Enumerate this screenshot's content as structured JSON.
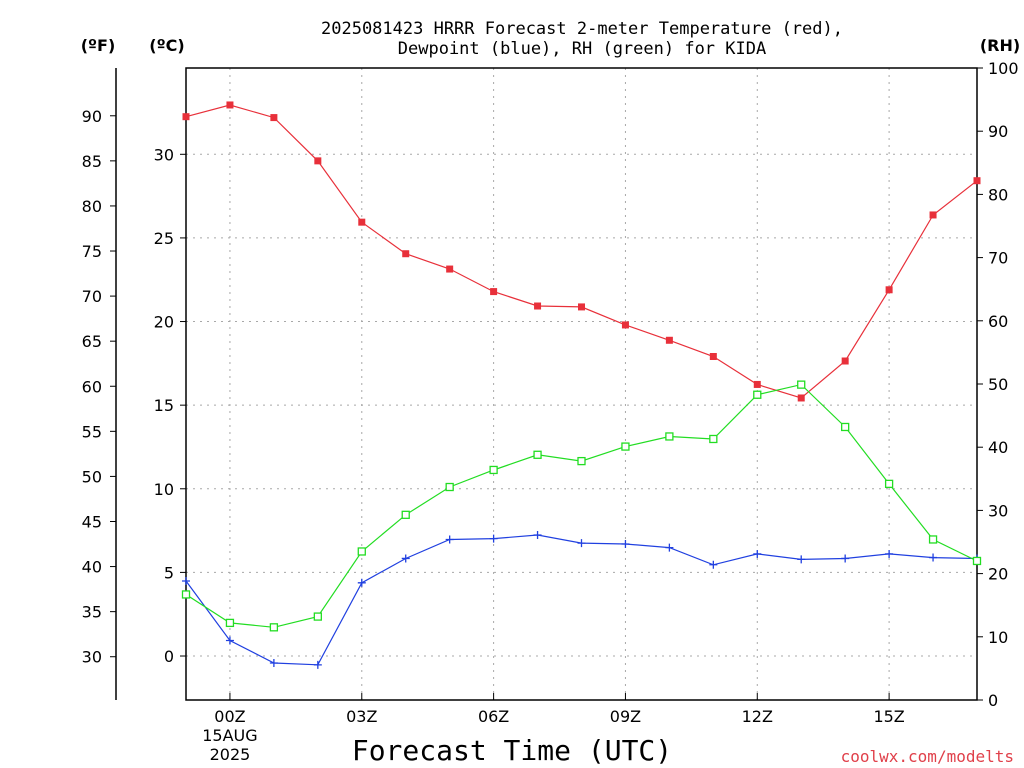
{
  "chart_data": {
    "type": "line",
    "title_lines": [
      "2025081423 HRRR Forecast 2-meter Temperature (red),",
      "Dewpoint (blue), RH (green) for KIDA"
    ],
    "xlabel": "Forecast Time (UTC)",
    "credit": "coolwx.com/modelts",
    "x_unit": "hours since 00Z 15AUG2025",
    "xlim": [
      -1,
      17
    ],
    "x_ticks": [
      {
        "x": 0,
        "lines": [
          "00Z",
          "15AUG",
          "2025"
        ]
      },
      {
        "x": 3,
        "lines": [
          "03Z"
        ]
      },
      {
        "x": 6,
        "lines": [
          "06Z"
        ]
      },
      {
        "x": 9,
        "lines": [
          "09Z"
        ]
      },
      {
        "x": 12,
        "lines": [
          "12Z"
        ]
      },
      {
        "x": 15,
        "lines": [
          "15Z"
        ]
      }
    ],
    "grid": true,
    "axes": {
      "f": {
        "label": "(ºF)",
        "lim": [
          25.2,
          95.3
        ],
        "ticks": [
          30,
          35,
          40,
          45,
          50,
          55,
          60,
          65,
          70,
          75,
          80,
          85,
          90
        ]
      },
      "c": {
        "label": "(ºC)",
        "lim": [
          -2.63,
          35.16
        ],
        "ticks": [
          0,
          5,
          10,
          15,
          20,
          25,
          30
        ]
      },
      "rh": {
        "label": "(RH)",
        "lim": [
          0,
          100
        ],
        "ticks": [
          0,
          10,
          20,
          30,
          40,
          50,
          60,
          70,
          80,
          90,
          100
        ]
      }
    },
    "x": [
      -1,
      0,
      1,
      2,
      3,
      4,
      5,
      6,
      7,
      8,
      9,
      10,
      11,
      12,
      13,
      14,
      15,
      16,
      17
    ],
    "series": [
      {
        "name": "Temperature",
        "axis": "f",
        "color": "#e8303a",
        "marker": "filled-square",
        "values": [
          89.9,
          91.2,
          89.8,
          85.0,
          78.2,
          74.7,
          73.0,
          70.5,
          68.9,
          68.8,
          66.8,
          65.1,
          63.3,
          60.2,
          58.7,
          62.8,
          70.7,
          79.0,
          82.8
        ]
      },
      {
        "name": "Dewpoint",
        "axis": "f",
        "color": "#2040e0",
        "marker": "plus",
        "values": [
          38.4,
          31.8,
          29.3,
          29.1,
          38.2,
          40.9,
          43.0,
          43.1,
          43.5,
          42.6,
          42.5,
          42.1,
          40.2,
          41.4,
          40.8,
          40.9,
          41.4,
          41.0,
          40.9
        ]
      },
      {
        "name": "RH",
        "axis": "rh",
        "color": "#22dd22",
        "marker": "open-square",
        "values": [
          16.7,
          12.2,
          11.5,
          13.2,
          23.5,
          29.3,
          33.7,
          36.4,
          38.8,
          37.8,
          40.1,
          41.7,
          41.3,
          48.3,
          49.9,
          43.2,
          34.2,
          25.4,
          22.0
        ]
      }
    ]
  }
}
